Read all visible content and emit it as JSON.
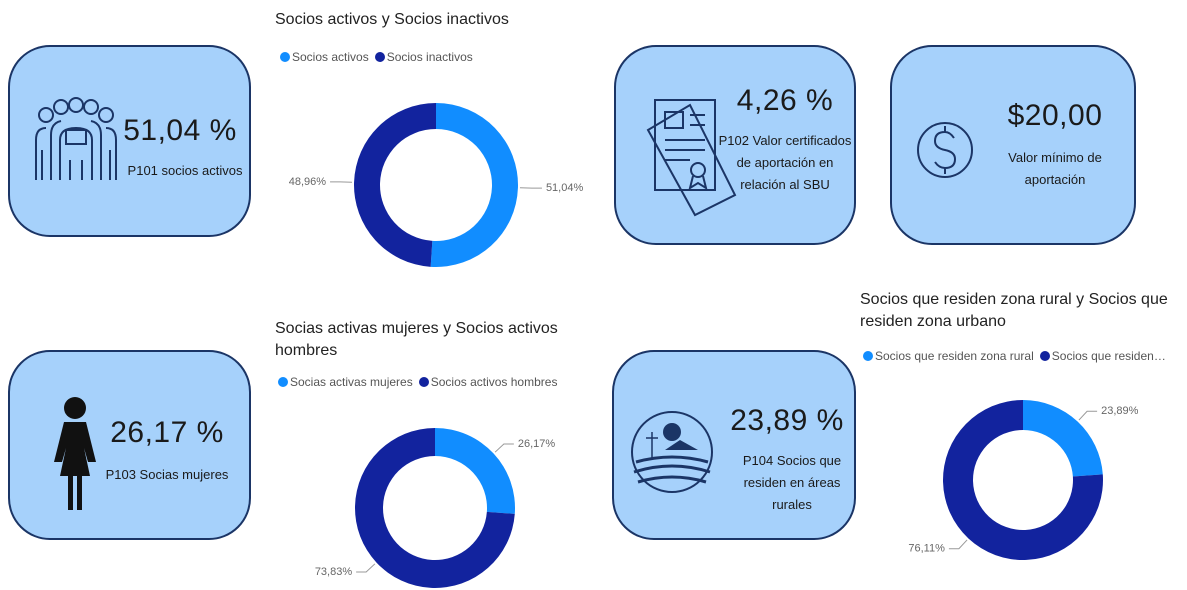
{
  "cards": [
    {
      "value": "51,04 %",
      "label": "P101 socios activos"
    },
    {
      "value": "4,26 %",
      "label": "P102 Valor certificados de aportación en relación al SBU"
    },
    {
      "value": "$20,00",
      "label": "Valor mínimo de aportación"
    },
    {
      "value": "26,17 %",
      "label": "P103 Socias mujeres"
    },
    {
      "value": "23,89 %",
      "label": "P104 Socios que residen en áreas rurales"
    }
  ],
  "chart_data": [
    {
      "type": "donut",
      "title": "Socios activos y Socios inactivos",
      "categories": [
        "Socios activos",
        "Socios inactivos"
      ],
      "values": [
        51.04,
        48.96
      ],
      "value_labels": [
        "51,04%",
        "48,96%"
      ],
      "colors": [
        "#118dff",
        "#12239e"
      ]
    },
    {
      "type": "donut",
      "title": "Socias activas mujeres y Socios activos hombres",
      "categories": [
        "Socias activas mujeres",
        "Socios activos hombres"
      ],
      "values": [
        26.17,
        73.83
      ],
      "value_labels": [
        "26,17%",
        "73,83%"
      ],
      "colors": [
        "#118dff",
        "#12239e"
      ]
    },
    {
      "type": "donut",
      "title": "Socios que residen zona rural y Socios que residen zona urbano",
      "categories": [
        "Socios que residen zona rural",
        "Socios que residen…"
      ],
      "values": [
        23.89,
        76.11
      ],
      "value_labels": [
        "23,89%",
        "76,11%"
      ],
      "colors": [
        "#118dff",
        "#12239e"
      ]
    }
  ]
}
